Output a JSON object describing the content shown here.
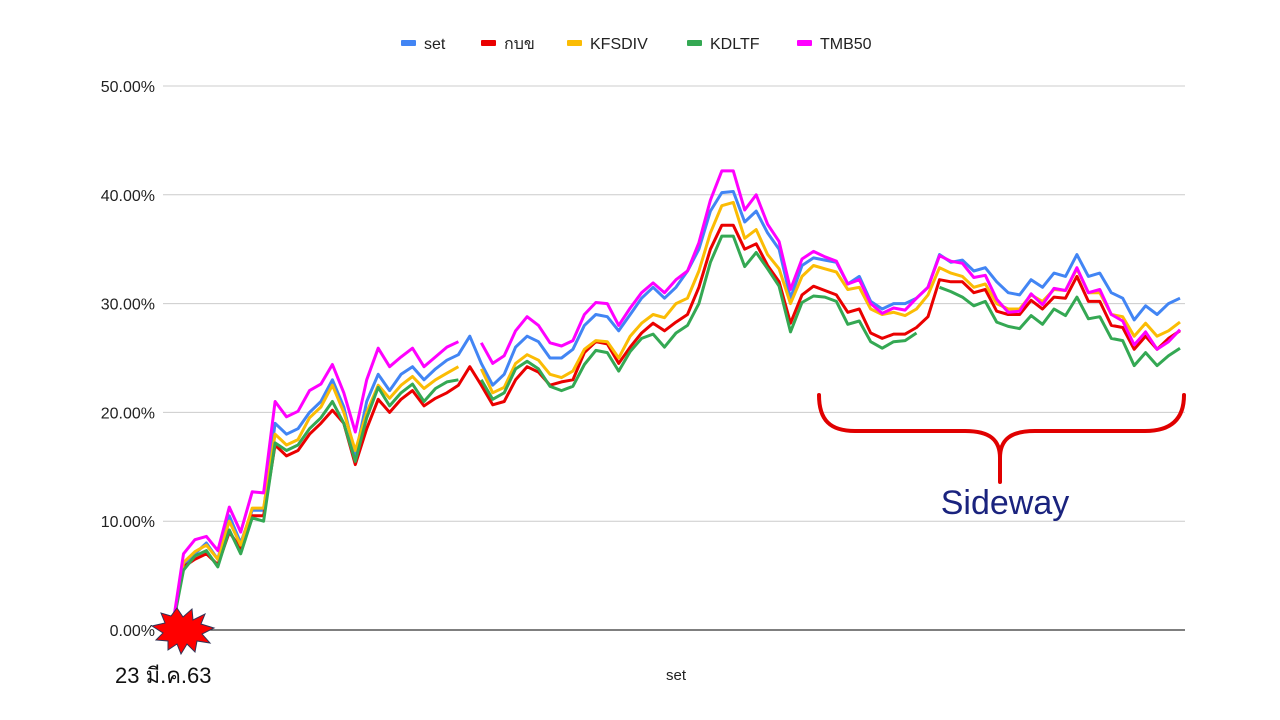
{
  "chart_data": {
    "type": "line",
    "xlabel": "set",
    "start_label": "23 มี.ค.63",
    "y_ticks": [
      "0.00%",
      "10.00%",
      "20.00%",
      "30.00%",
      "40.00%",
      "50.00%"
    ],
    "ylim": [
      0,
      50
    ],
    "grid": true,
    "legend_position": "top",
    "annotation": {
      "text": "Sideway",
      "color": "#e00000",
      "text_color": "#1a237e"
    },
    "series": [
      {
        "name": "set",
        "color": "#4285f4",
        "values": [
          0,
          6,
          7,
          8,
          6.5,
          10.5,
          8,
          11,
          11,
          19,
          18,
          18.5,
          20,
          21,
          23,
          20.5,
          16,
          21,
          23.5,
          22,
          23.5,
          24.2,
          23,
          24,
          24.8,
          25.3,
          27,
          24.5,
          22.5,
          23.5,
          26,
          27,
          26.5,
          25,
          25,
          25.8,
          28,
          29,
          28.8,
          27.5,
          29,
          30.5,
          31.5,
          30.5,
          31.5,
          33,
          35,
          38.5,
          40.2,
          40.3,
          37.5,
          38.5,
          36.5,
          35,
          30.5,
          33.5,
          34.2,
          34,
          33.8,
          31.8,
          32.5,
          30.2,
          29.5,
          30,
          30,
          30.5,
          31.5,
          34.5,
          33.8,
          34,
          33,
          33.3,
          32,
          31,
          30.8,
          32.2,
          31.5,
          32.8,
          32.5,
          34.5,
          32.5,
          32.8,
          31,
          30.5,
          28.5,
          29.8,
          29,
          30,
          30.5
        ]
      },
      {
        "name": "กบข",
        "color": "#ea0000",
        "values": [
          0,
          5.8,
          6.5,
          7,
          6,
          9,
          7.5,
          10.5,
          10.5,
          17,
          16,
          16.5,
          18,
          19,
          20.2,
          19,
          15.2,
          18.5,
          21.2,
          20,
          21.2,
          22,
          20.6,
          21.3,
          21.8,
          22.5,
          24.2,
          22.5,
          20.7,
          21,
          23,
          24.2,
          23.7,
          22.5,
          22.8,
          23,
          25.5,
          26.5,
          26.3,
          24.5,
          26,
          27.3,
          28.2,
          27.5,
          28.3,
          29,
          31.5,
          35,
          37.2,
          37.2,
          35,
          35.5,
          33.5,
          32,
          28.2,
          30.8,
          31.6,
          31.2,
          30.8,
          29.2,
          29.5,
          27.3,
          26.8,
          27.2,
          27.2,
          27.8,
          28.8,
          32.2,
          32,
          32,
          31,
          31.3,
          29.3,
          29,
          29,
          30.3,
          29.5,
          30.6,
          30.5,
          32.5,
          30.2,
          30.2,
          28,
          27.8,
          25.8,
          27,
          25.8,
          26.8,
          27.5
        ]
      },
      {
        "name": "KFSDIV",
        "color": "#fbbc04",
        "values": [
          0,
          6.2,
          7.2,
          7.8,
          6.5,
          10,
          7.8,
          11.2,
          11.2,
          18,
          17,
          17.5,
          19.5,
          20.5,
          22.5,
          20,
          16.5,
          20,
          22.5,
          21.3,
          22.5,
          23.3,
          22.2,
          23,
          23.6,
          24.2,
          null,
          24,
          21.8,
          22.3,
          24.5,
          25.3,
          24.8,
          23.5,
          23.2,
          23.8,
          25.8,
          26.6,
          26.5,
          25,
          27,
          28.2,
          29,
          28.7,
          30,
          30.5,
          33,
          36.5,
          39,
          39.3,
          36,
          36.8,
          34.5,
          33.2,
          30,
          32.5,
          33.5,
          33.2,
          32.9,
          31.3,
          31.5,
          29.5,
          29,
          29.2,
          28.9,
          29.5,
          30.8,
          33.3,
          32.8,
          32.5,
          31.5,
          31.8,
          30,
          29.5,
          29.5,
          30.8,
          30.2,
          31.3,
          31.2,
          33.2,
          31,
          31,
          29,
          28.8,
          27,
          28.2,
          27,
          27.5,
          28.3
        ]
      },
      {
        "name": "KDLTF",
        "color": "#34a853",
        "values": [
          0,
          5.5,
          6.8,
          7.3,
          5.8,
          9.2,
          7,
          10.3,
          10,
          17.2,
          16.5,
          17,
          18.5,
          19.5,
          21,
          19,
          15.5,
          19.5,
          22.3,
          20.6,
          21.8,
          22.6,
          21,
          22.2,
          22.8,
          23,
          null,
          23,
          21.2,
          21.8,
          24,
          24.7,
          24,
          22.4,
          22,
          22.4,
          24.4,
          25.7,
          25.5,
          23.8,
          25.6,
          26.8,
          27.2,
          26,
          27.3,
          28,
          30,
          33.8,
          36.2,
          36.2,
          33.4,
          34.7,
          33.2,
          31.6,
          27.4,
          30.1,
          30.7,
          30.6,
          30.2,
          28.1,
          28.4,
          26.5,
          25.9,
          26.5,
          26.6,
          27.3,
          null,
          31.5,
          31.1,
          30.6,
          29.8,
          30.2,
          28.3,
          27.9,
          27.7,
          28.9,
          28.1,
          29.5,
          28.9,
          30.6,
          28.6,
          28.8,
          26.8,
          26.6,
          24.3,
          25.5,
          24.3,
          25.2,
          25.9
        ]
      },
      {
        "name": "TMB50",
        "color": "#ff00ff",
        "values": [
          0,
          7,
          8.3,
          8.6,
          7.3,
          11.3,
          9,
          12.7,
          12.6,
          21,
          19.6,
          20.1,
          22,
          22.6,
          24.4,
          21.8,
          18.2,
          23,
          25.9,
          24.2,
          25.1,
          25.9,
          24.2,
          25.1,
          26,
          26.5,
          null,
          26.4,
          24.5,
          25.2,
          27.5,
          28.8,
          28,
          26.4,
          26.1,
          26.6,
          29,
          30.1,
          30,
          28,
          29.6,
          31,
          31.9,
          31,
          32.2,
          33,
          35.6,
          39.5,
          42.2,
          42.2,
          38.6,
          40,
          37.3,
          35.7,
          31.3,
          34.1,
          34.8,
          34.3,
          33.9,
          31.8,
          32.2,
          30,
          29.1,
          29.6,
          29.4,
          30.5,
          31.5,
          34.4,
          33.9,
          33.7,
          32.4,
          32.6,
          30.4,
          29.2,
          29.3,
          30.9,
          29.9,
          31.4,
          31.2,
          33.3,
          31,
          31.3,
          29,
          28.4,
          26.2,
          27.4,
          25.8,
          26.5,
          27.6
        ]
      }
    ]
  }
}
